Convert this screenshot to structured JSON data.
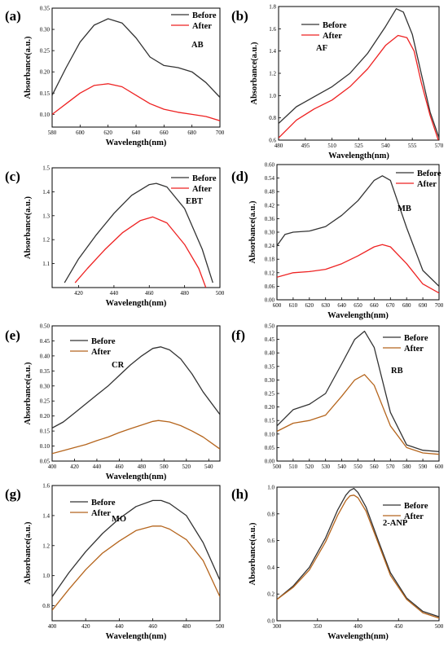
{
  "figure": {
    "panels": [
      {
        "label": "(a)"
      },
      {
        "label": "(b)"
      },
      {
        "label": "(c)"
      },
      {
        "label": "(d)"
      },
      {
        "label": "(e)"
      },
      {
        "label": "(f)"
      },
      {
        "label": "(g)"
      },
      {
        "label": "(h)"
      }
    ]
  },
  "colors": {
    "before": "#333333",
    "after_red": "#ee2222",
    "after_brown": "#b5651d",
    "axis": "#000000"
  },
  "chart_data": [
    {
      "type": "line",
      "panel": "(a)",
      "annotation": "AB",
      "xlabel": "Wavelength(nm)",
      "ylabel": "Absorbance(a.u.)",
      "xlim": [
        580,
        700
      ],
      "ylim": [
        0.07,
        0.35
      ],
      "xticks": [
        580,
        600,
        620,
        640,
        660,
        680,
        700
      ],
      "yticks": [
        0.1,
        0.15,
        0.2,
        0.25,
        0.3,
        0.35
      ],
      "ytick_labels": [
        "0.10",
        "0.15",
        "0.20",
        "0.25",
        "0.30",
        "0.35"
      ],
      "legend": "top-right",
      "series": [
        {
          "name": "Before",
          "color": "before",
          "x": [
            580,
            590,
            600,
            610,
            620,
            630,
            640,
            650,
            660,
            670,
            680,
            690,
            700
          ],
          "y": [
            0.145,
            0.21,
            0.27,
            0.31,
            0.325,
            0.315,
            0.28,
            0.235,
            0.215,
            0.21,
            0.2,
            0.175,
            0.14
          ]
        },
        {
          "name": "After",
          "color": "after_red",
          "x": [
            580,
            590,
            600,
            610,
            620,
            630,
            640,
            650,
            660,
            670,
            680,
            690,
            700
          ],
          "y": [
            0.1,
            0.125,
            0.15,
            0.168,
            0.172,
            0.165,
            0.145,
            0.125,
            0.112,
            0.105,
            0.1,
            0.095,
            0.085
          ]
        }
      ]
    },
    {
      "type": "line",
      "panel": "(b)",
      "annotation": "AF",
      "xlabel": "Wavelength(nm)",
      "ylabel": "Absorbance(a.u.)",
      "xlim": [
        480,
        570
      ],
      "ylim": [
        0.6,
        1.8
      ],
      "xticks": [
        480,
        495,
        510,
        525,
        540,
        555,
        570
      ],
      "yticks": [
        0.6,
        0.8,
        1.0,
        1.2,
        1.4,
        1.6,
        1.8
      ],
      "ytick_labels": [
        "0.6",
        "0.8",
        "1.0",
        "1.2",
        "1.4",
        "1.6",
        "1.8"
      ],
      "legend": "top-left",
      "series": [
        {
          "name": "Before",
          "color": "before",
          "x": [
            480,
            490,
            500,
            510,
            520,
            530,
            540,
            546,
            550,
            555,
            560,
            565,
            570
          ],
          "y": [
            0.75,
            0.9,
            0.99,
            1.08,
            1.2,
            1.38,
            1.62,
            1.78,
            1.75,
            1.55,
            1.2,
            0.85,
            0.62
          ]
        },
        {
          "name": "After",
          "color": "after_red",
          "x": [
            480,
            490,
            500,
            510,
            520,
            530,
            540,
            547,
            552,
            556,
            560,
            565,
            570
          ],
          "y": [
            0.62,
            0.78,
            0.88,
            0.96,
            1.08,
            1.24,
            1.45,
            1.54,
            1.52,
            1.4,
            1.12,
            0.82,
            0.58
          ]
        }
      ]
    },
    {
      "type": "line",
      "panel": "(c)",
      "annotation": "EBT",
      "xlabel": "Wavelength(nm)",
      "ylabel": "Absorbance(a.u.)",
      "xlim": [
        405,
        500
      ],
      "ylim": [
        1.0,
        1.5
      ],
      "xticks": [
        420,
        440,
        460,
        480,
        500
      ],
      "yticks": [
        1.1,
        1.2,
        1.3,
        1.4,
        1.5
      ],
      "ytick_labels": [
        "1.1",
        "1.2",
        "1.3",
        "1.4",
        "1.5"
      ],
      "legend": "top-right",
      "series": [
        {
          "name": "Before",
          "color": "before",
          "x": [
            412,
            420,
            430,
            440,
            450,
            460,
            464,
            470,
            480,
            490,
            496
          ],
          "y": [
            1.02,
            1.12,
            1.22,
            1.31,
            1.385,
            1.43,
            1.435,
            1.42,
            1.33,
            1.16,
            1.02
          ]
        },
        {
          "name": "After",
          "color": "after_red",
          "x": [
            418,
            425,
            435,
            445,
            455,
            462,
            470,
            480,
            488,
            492
          ],
          "y": [
            1.02,
            1.08,
            1.16,
            1.23,
            1.28,
            1.295,
            1.27,
            1.18,
            1.08,
            1.0
          ]
        }
      ]
    },
    {
      "type": "line",
      "panel": "(d)",
      "annotation": "MB",
      "xlabel": "Wavelength(nm)",
      "ylabel": "Absorbance(a.u.)",
      "xlim": [
        600,
        700
      ],
      "ylim": [
        0.0,
        0.6
      ],
      "xticks": [
        600,
        610,
        620,
        630,
        640,
        650,
        660,
        670,
        680,
        690,
        700
      ],
      "yticks": [
        0.0,
        0.06,
        0.12,
        0.18,
        0.24,
        0.3,
        0.36,
        0.42,
        0.48,
        0.54,
        0.6
      ],
      "ytick_labels": [
        "0.00",
        "0.06",
        "0.12",
        "0.18",
        "0.24",
        "0.30",
        "0.36",
        "0.42",
        "0.48",
        "0.54",
        "0.60"
      ],
      "legend": "top-right",
      "series": [
        {
          "name": "Before",
          "color": "before",
          "x": [
            600,
            605,
            610,
            620,
            630,
            640,
            650,
            660,
            665,
            670,
            680,
            690,
            700
          ],
          "y": [
            0.24,
            0.29,
            0.3,
            0.305,
            0.325,
            0.375,
            0.44,
            0.53,
            0.55,
            0.53,
            0.32,
            0.13,
            0.06
          ]
        },
        {
          "name": "After",
          "color": "after_red",
          "x": [
            600,
            610,
            620,
            630,
            640,
            650,
            660,
            665,
            670,
            680,
            690,
            700
          ],
          "y": [
            0.1,
            0.12,
            0.125,
            0.135,
            0.16,
            0.195,
            0.235,
            0.245,
            0.235,
            0.16,
            0.07,
            0.03
          ]
        }
      ]
    },
    {
      "type": "line",
      "panel": "(e)",
      "annotation": "CR",
      "xlabel": "Wavelength(nm)",
      "ylabel": "Absorbance(a.u.)",
      "xlim": [
        400,
        550
      ],
      "ylim": [
        0.05,
        0.5
      ],
      "xticks": [
        400,
        420,
        440,
        460,
        480,
        500,
        520,
        540
      ],
      "yticks": [
        0.05,
        0.1,
        0.15,
        0.2,
        0.25,
        0.3,
        0.35,
        0.4,
        0.45,
        0.5
      ],
      "ytick_labels": [
        "0.05",
        "0.10",
        "0.15",
        "0.20",
        "0.25",
        "0.30",
        "0.35",
        "0.40",
        "0.45",
        "0.50"
      ],
      "legend": "top-left",
      "series": [
        {
          "name": "Before",
          "color": "before",
          "x": [
            400,
            410,
            420,
            430,
            440,
            450,
            460,
            470,
            480,
            490,
            497,
            505,
            515,
            525,
            535,
            550
          ],
          "y": [
            0.16,
            0.18,
            0.21,
            0.24,
            0.27,
            0.3,
            0.335,
            0.37,
            0.4,
            0.425,
            0.43,
            0.42,
            0.39,
            0.34,
            0.28,
            0.205
          ]
        },
        {
          "name": "After",
          "color": "after_brown",
          "x": [
            400,
            410,
            420,
            430,
            440,
            450,
            460,
            470,
            480,
            490,
            495,
            505,
            515,
            525,
            535,
            550
          ],
          "y": [
            0.075,
            0.085,
            0.095,
            0.105,
            0.118,
            0.13,
            0.145,
            0.158,
            0.17,
            0.182,
            0.185,
            0.18,
            0.168,
            0.15,
            0.13,
            0.09
          ]
        }
      ]
    },
    {
      "type": "line",
      "panel": "(f)",
      "annotation": "RB",
      "xlabel": "",
      "ylabel": "",
      "xlim": [
        500,
        600
      ],
      "ylim": [
        0.0,
        0.5
      ],
      "xticks": [
        500,
        510,
        520,
        530,
        540,
        550,
        560,
        570,
        580,
        590,
        600
      ],
      "yticks": [
        0.0,
        0.05,
        0.1,
        0.15,
        0.2,
        0.25,
        0.3,
        0.35,
        0.4,
        0.45,
        0.5
      ],
      "ytick_labels": [
        "0.00",
        "0.05",
        "0.10",
        "0.15",
        "0.20",
        "0.25",
        "0.30",
        "0.35",
        "0.40",
        "0.45",
        "0.50"
      ],
      "legend": "top-right",
      "series": [
        {
          "name": "Before",
          "color": "before",
          "x": [
            500,
            505,
            510,
            520,
            530,
            540,
            548,
            554,
            560,
            570,
            580,
            590,
            600
          ],
          "y": [
            0.13,
            0.16,
            0.19,
            0.21,
            0.25,
            0.36,
            0.45,
            0.48,
            0.42,
            0.18,
            0.06,
            0.04,
            0.035
          ]
        },
        {
          "name": "After",
          "color": "after_brown",
          "x": [
            500,
            505,
            510,
            520,
            530,
            540,
            548,
            554,
            560,
            570,
            580,
            590,
            600
          ],
          "y": [
            0.11,
            0.125,
            0.14,
            0.15,
            0.17,
            0.24,
            0.3,
            0.32,
            0.28,
            0.13,
            0.05,
            0.03,
            0.025
          ]
        }
      ]
    },
    {
      "type": "line",
      "panel": "(g)",
      "annotation": "MO",
      "xlabel": "Wavelength(nm)",
      "ylabel": "Absorbance(a.u.)",
      "xlim": [
        400,
        500
      ],
      "ylim": [
        0.7,
        1.6
      ],
      "xticks": [
        400,
        420,
        440,
        460,
        480,
        500
      ],
      "yticks": [
        0.8,
        1.0,
        1.2,
        1.4,
        1.6
      ],
      "ytick_labels": [
        "0.8",
        "1.0",
        "1.2",
        "1.4",
        "1.6"
      ],
      "legend": "top-left",
      "series": [
        {
          "name": "Before",
          "color": "before",
          "x": [
            400,
            410,
            420,
            430,
            440,
            450,
            460,
            465,
            470,
            480,
            490,
            500
          ],
          "y": [
            0.86,
            1.02,
            1.16,
            1.28,
            1.38,
            1.46,
            1.5,
            1.5,
            1.48,
            1.4,
            1.22,
            0.97
          ]
        },
        {
          "name": "After",
          "color": "after_brown",
          "x": [
            400,
            410,
            420,
            430,
            440,
            450,
            460,
            465,
            470,
            480,
            490,
            500
          ],
          "y": [
            0.77,
            0.91,
            1.04,
            1.15,
            1.23,
            1.3,
            1.33,
            1.33,
            1.31,
            1.24,
            1.1,
            0.86
          ]
        }
      ]
    },
    {
      "type": "line",
      "panel": "(h)",
      "annotation": "2-ANP",
      "xlabel": "Wavelength(nm)",
      "ylabel": "Absorbance(a.u.)",
      "xlim": [
        300,
        500
      ],
      "ylim": [
        0.0,
        1.0
      ],
      "xticks": [
        300,
        350,
        400,
        450,
        500
      ],
      "yticks": [
        0.0,
        0.2,
        0.4,
        0.6,
        0.8,
        1.0
      ],
      "ytick_labels": [
        "0.0",
        "0.2",
        "0.4",
        "0.6",
        "0.8",
        "1.0"
      ],
      "legend": "top-right",
      "series": [
        {
          "name": "Before",
          "color": "before",
          "x": [
            300,
            320,
            340,
            360,
            375,
            385,
            390,
            395,
            400,
            410,
            425,
            440,
            460,
            480,
            500
          ],
          "y": [
            0.16,
            0.26,
            0.4,
            0.62,
            0.83,
            0.94,
            0.975,
            0.99,
            0.96,
            0.85,
            0.6,
            0.36,
            0.17,
            0.07,
            0.03
          ]
        },
        {
          "name": "After",
          "color": "after_brown",
          "x": [
            300,
            320,
            340,
            360,
            375,
            385,
            390,
            395,
            400,
            410,
            425,
            440,
            460,
            480,
            500
          ],
          "y": [
            0.16,
            0.25,
            0.38,
            0.59,
            0.79,
            0.9,
            0.935,
            0.94,
            0.92,
            0.82,
            0.58,
            0.34,
            0.16,
            0.06,
            0.02
          ]
        }
      ]
    }
  ]
}
